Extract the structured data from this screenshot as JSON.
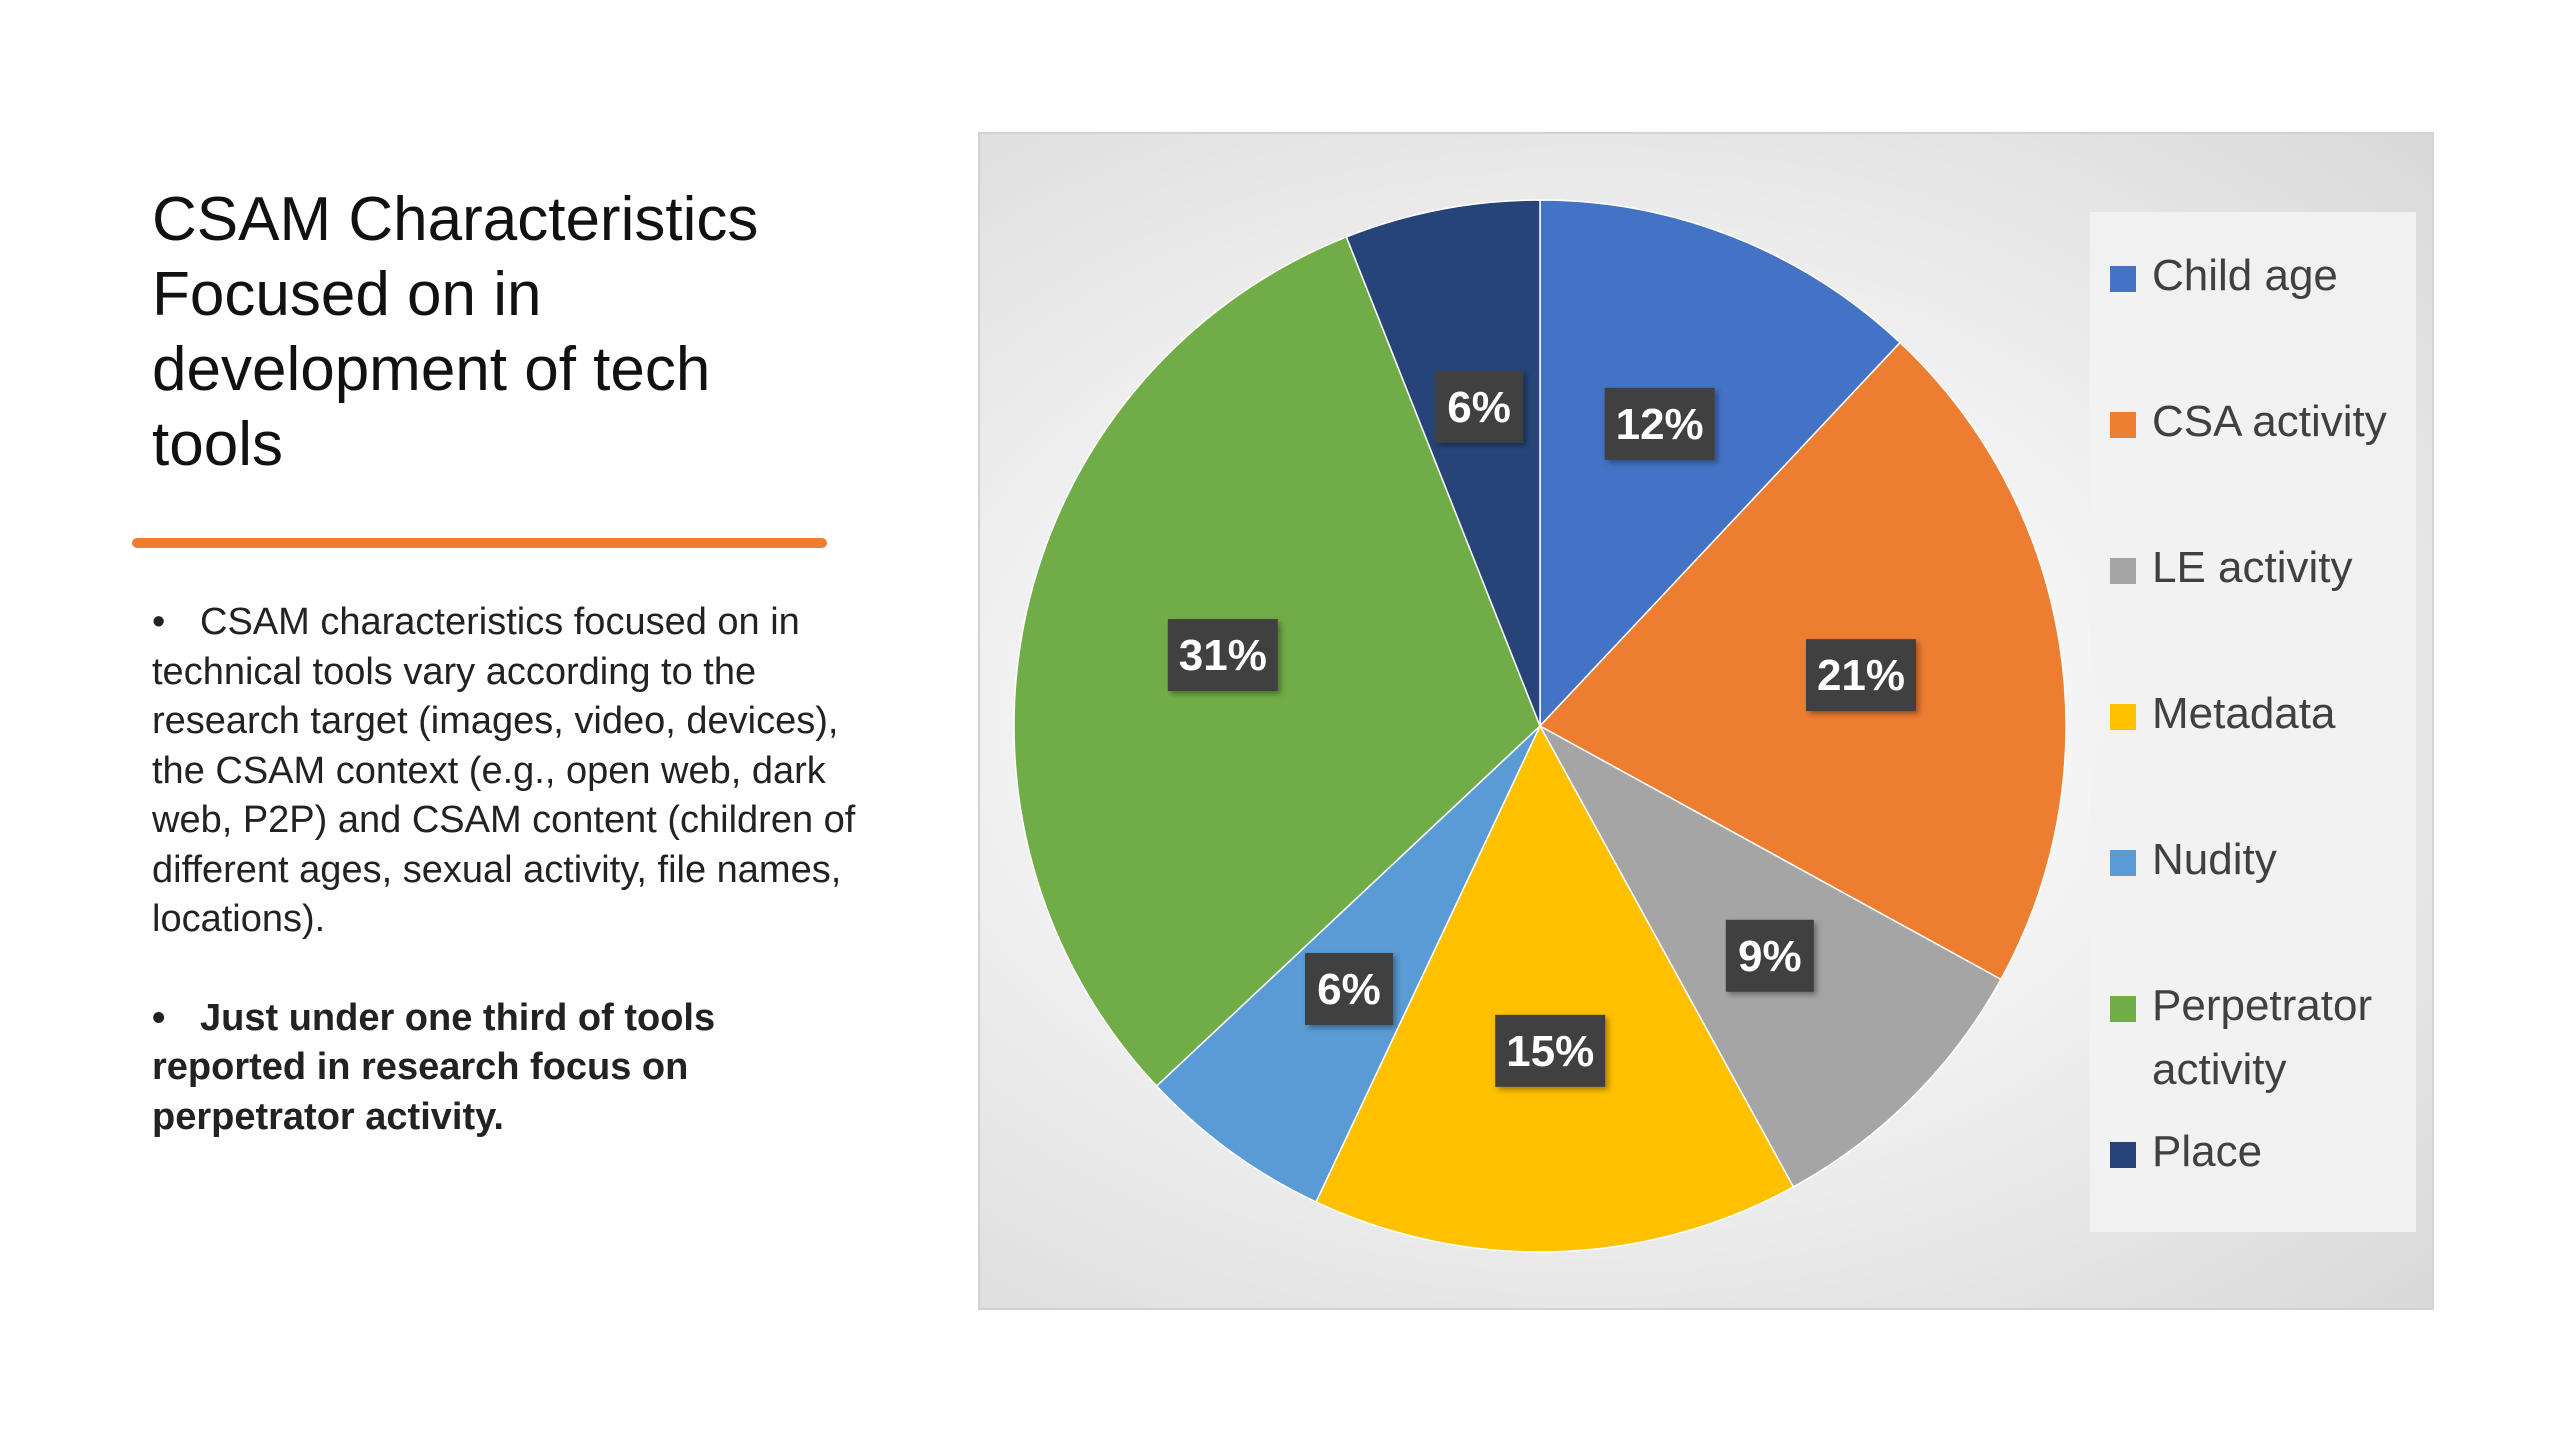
{
  "slide": {
    "title": "CSAM Characteristics Focused on in development of tech tools",
    "bullets": [
      {
        "text": "CSAM characteristics focused on in technical tools vary according to the research target (images, video, devices), the CSAM context (e.g., open web, dark web, P2P) and CSAM content (children of different ages, sexual activity, file names, locations).",
        "bold": false
      },
      {
        "text": "Just under one third of tools reported in research focus on perpetrator activity.",
        "bold": true
      }
    ],
    "bullet_glyph": "•",
    "accent_color": "#ED7D31"
  },
  "chart_data": {
    "type": "pie",
    "title": "",
    "start_angle_deg": 0,
    "direction": "clockwise",
    "legend_position": "right",
    "slices": [
      {
        "label": "Child age",
        "value": 12,
        "display": "12%",
        "color": "#4472C4"
      },
      {
        "label": "CSA activity",
        "value": 21,
        "display": "21%",
        "color": "#ED7D31"
      },
      {
        "label": "LE activity",
        "value": 9,
        "display": "9%",
        "color": "#A5A5A5"
      },
      {
        "label": "Metadata",
        "value": 15,
        "display": "15%",
        "color": "#FFC000"
      },
      {
        "label": "Nudity",
        "value": 6,
        "display": "6%",
        "color": "#5B9BD5"
      },
      {
        "label": "Perpetrator activity",
        "value": 31,
        "display": "31%",
        "color": "#70AD47"
      },
      {
        "label": "Place",
        "value": 6,
        "display": "6%",
        "color": "#264478"
      }
    ]
  }
}
